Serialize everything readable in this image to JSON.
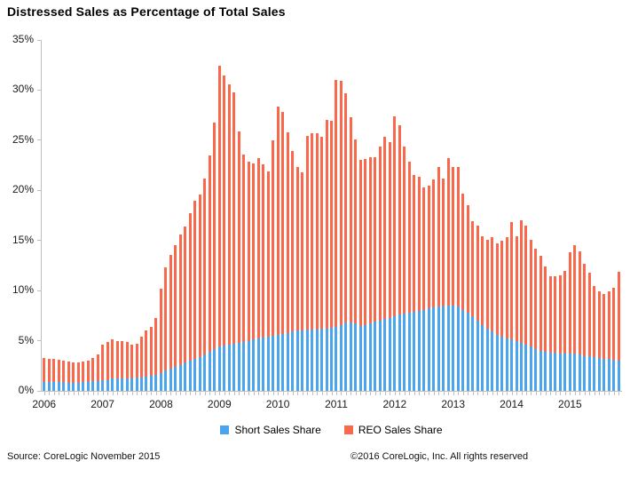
{
  "page": {
    "title": "Distressed Sales as Percentage of Total Sales"
  },
  "legend": {
    "items": [
      {
        "label": "Short Sales Share",
        "color": "#4BA4EE"
      },
      {
        "label": "REO Sales Share",
        "color": "#F9684B"
      }
    ]
  },
  "footer": {
    "source": "Source: CoreLogic November 2015",
    "copyright": "©2016 CoreLogic, Inc. All rights reserved"
  },
  "chart_data": {
    "type": "bar",
    "stacked": true,
    "title": "Distressed Sales as Percentage of Total Sales",
    "x_start": "2006-01",
    "x_end": "2015-11",
    "x_tick_labels": [
      "2006",
      "2007",
      "2008",
      "2009",
      "2010",
      "2011",
      "2012",
      "2013",
      "2014",
      "2015"
    ],
    "y_tick_labels": [
      "0%",
      "5%",
      "10%",
      "15%",
      "20%",
      "25%",
      "30%",
      "35%"
    ],
    "ylim": [
      0,
      35
    ],
    "y_step": 5,
    "grid": false,
    "legend_position": "bottom",
    "colors": {
      "short": "#4BA4EE",
      "reo": "#F9684B",
      "axis": "#bfbfbf"
    },
    "series": [
      {
        "name": "Short Sales Share",
        "values": [
          0.9,
          0.9,
          0.9,
          0.9,
          0.9,
          0.8,
          0.8,
          0.8,
          0.9,
          0.9,
          1.0,
          1.0,
          1.1,
          1.1,
          1.2,
          1.2,
          1.2,
          1.2,
          1.2,
          1.3,
          1.3,
          1.4,
          1.5,
          1.6,
          1.8,
          2.0,
          2.2,
          2.4,
          2.6,
          2.8,
          3.0,
          3.2,
          3.4,
          3.6,
          3.9,
          4.2,
          4.4,
          4.5,
          4.6,
          4.7,
          4.8,
          4.9,
          5.0,
          5.1,
          5.2,
          5.3,
          5.4,
          5.5,
          5.6,
          5.7,
          5.8,
          5.9,
          6.0,
          6.0,
          6.1,
          6.1,
          6.1,
          6.2,
          6.2,
          6.3,
          6.4,
          6.6,
          6.8,
          6.8,
          6.7,
          6.5,
          6.6,
          6.7,
          6.9,
          7.0,
          7.2,
          7.3,
          7.4,
          7.6,
          7.7,
          7.8,
          7.9,
          8.0,
          8.1,
          8.2,
          8.3,
          8.4,
          8.4,
          8.5,
          8.5,
          8.4,
          8.1,
          7.8,
          7.4,
          7.0,
          6.6,
          6.2,
          5.9,
          5.6,
          5.4,
          5.2,
          5.1,
          5.0,
          4.8,
          4.6,
          4.4,
          4.2,
          4.0,
          3.9,
          3.8,
          3.8,
          3.7,
          3.7,
          3.7,
          3.7,
          3.6,
          3.5,
          3.5,
          3.4,
          3.3,
          3.2,
          3.2,
          3.1,
          3.0
        ]
      },
      {
        "name": "REO Sales Share",
        "values": [
          2.4,
          2.3,
          2.3,
          2.2,
          2.1,
          2.1,
          2.0,
          2.0,
          2.0,
          2.1,
          2.3,
          2.6,
          3.5,
          3.8,
          3.9,
          3.8,
          3.8,
          3.7,
          3.4,
          3.4,
          4.1,
          4.6,
          4.9,
          5.7,
          8.4,
          10.3,
          11.4,
          12.1,
          13.0,
          13.6,
          14.7,
          15.8,
          16.2,
          17.6,
          19.6,
          22.6,
          28.0,
          27.0,
          26.0,
          25.1,
          21.1,
          18.7,
          17.9,
          17.6,
          18.0,
          17.3,
          16.5,
          19.5,
          22.8,
          22.1,
          20.0,
          18.0,
          16.3,
          15.8,
          19.3,
          19.6,
          19.6,
          19.1,
          20.8,
          20.6,
          24.6,
          24.3,
          22.9,
          20.5,
          18.4,
          16.5,
          16.5,
          16.6,
          16.4,
          17.4,
          18.1,
          17.5,
          20.0,
          18.9,
          16.7,
          15.1,
          13.6,
          13.4,
          12.2,
          12.3,
          12.8,
          13.9,
          12.8,
          14.7,
          13.8,
          13.9,
          11.6,
          10.7,
          9.5,
          9.5,
          8.8,
          8.9,
          9.4,
          9.1,
          9.6,
          10.1,
          11.7,
          10.4,
          12.2,
          11.9,
          10.7,
          10.0,
          9.5,
          8.5,
          7.6,
          7.6,
          7.8,
          8.3,
          10.1,
          10.8,
          10.3,
          9.2,
          8.3,
          7.1,
          6.6,
          6.5,
          6.7,
          7.2,
          8.9
        ]
      }
    ]
  }
}
